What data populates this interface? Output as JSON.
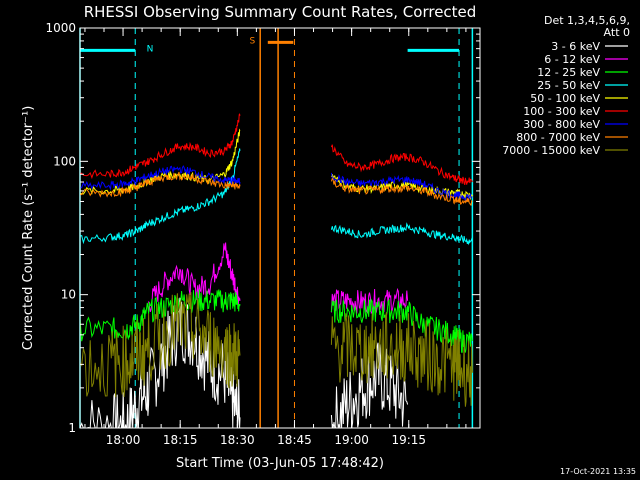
{
  "chart_data": {
    "type": "line",
    "title": "RHESSI Observing Summary Count Rates, Corrected",
    "xlabel": "Start Time (03-Jun-05 17:48:42)",
    "ylabel": "Corrected Count Rate (s⁻¹ detector⁻¹)",
    "yscale": "log",
    "ylim": [
      1,
      1000
    ],
    "xlim_minutes": [
      0,
      105
    ],
    "x_ticks": [
      {
        "label": "18:00",
        "min": 11.3
      },
      {
        "label": "18:15",
        "min": 26.3
      },
      {
        "label": "18:30",
        "min": 41.3
      },
      {
        "label": "18:45",
        "min": 56.3
      },
      {
        "label": "19:00",
        "min": 71.3
      },
      {
        "label": "19:15",
        "min": 86.3
      }
    ],
    "y_ticks": [
      {
        "label": "1",
        "value": 1
      },
      {
        "label": "10",
        "value": 10
      },
      {
        "label": "100",
        "value": 100
      },
      {
        "label": "1000",
        "value": 1000
      }
    ],
    "legend_header": [
      "Det 1,3,4,5,6,9,",
      "Att 0"
    ],
    "series": [
      {
        "name": "3 - 6 keV",
        "color": "#ffffff",
        "x": [
          0,
          8,
          12,
          15,
          18,
          22,
          26,
          30,
          34,
          38,
          40,
          42,
          46,
          50,
          55,
          62,
          66,
          70,
          74,
          78,
          82,
          86,
          90,
          94,
          98,
          100,
          103
        ],
        "y": [
          1,
          1,
          1,
          1.5,
          2,
          3.5,
          6,
          5,
          3,
          2.5,
          1.5,
          1.2,
          null,
          null,
          null,
          null,
          1,
          1.5,
          2,
          2.5,
          2,
          1.5,
          null,
          null,
          null,
          null,
          null
        ]
      },
      {
        "name": "6 - 12 keV",
        "color": "#ff00ff",
        "x": [
          0,
          8,
          12,
          15,
          18,
          22,
          26,
          30,
          34,
          38,
          40,
          42,
          46,
          50,
          55,
          62,
          66,
          70,
          74,
          78,
          82,
          86,
          90,
          94,
          98,
          100,
          103
        ],
        "y": [
          null,
          null,
          null,
          null,
          8.5,
          12,
          16,
          11,
          12,
          22,
          14,
          9,
          null,
          null,
          null,
          null,
          9,
          9,
          8.8,
          9,
          9,
          9,
          null,
          null,
          null,
          null,
          null
        ]
      },
      {
        "name": "12 - 25 keV",
        "color": "#00ff00",
        "x": [
          0,
          8,
          12,
          15,
          18,
          22,
          26,
          30,
          34,
          38,
          40,
          42,
          46,
          50,
          55,
          62,
          66,
          70,
          74,
          78,
          82,
          86,
          90,
          94,
          98,
          100,
          103
        ],
        "y": [
          5.5,
          5.5,
          5.5,
          6,
          7.5,
          8,
          9,
          9,
          9,
          9,
          9,
          8.5,
          null,
          null,
          null,
          null,
          7.5,
          7.5,
          7.5,
          7.5,
          7.5,
          7.5,
          6,
          5.5,
          5,
          4.5,
          4.5
        ]
      },
      {
        "name": "25 - 50 keV",
        "color": "#00ffff",
        "x": [
          0,
          8,
          12,
          15,
          18,
          22,
          26,
          30,
          34,
          38,
          40,
          42,
          46,
          50,
          55,
          62,
          66,
          70,
          74,
          78,
          82,
          86,
          90,
          94,
          98,
          100,
          103
        ],
        "y": [
          26,
          27,
          28,
          30,
          34,
          38,
          42,
          45,
          50,
          58,
          75,
          120,
          null,
          null,
          null,
          null,
          32,
          30,
          28,
          30,
          31,
          32,
          30,
          28,
          27,
          26,
          25
        ]
      },
      {
        "name": "50 - 100 keV",
        "color": "#ffff00",
        "x": [
          0,
          8,
          12,
          15,
          18,
          22,
          26,
          30,
          34,
          38,
          40,
          42,
          46,
          50,
          55,
          62,
          66,
          70,
          74,
          78,
          82,
          86,
          90,
          94,
          98,
          100,
          103
        ],
        "y": [
          60,
          60,
          62,
          65,
          72,
          78,
          80,
          76,
          72,
          80,
          100,
          170,
          null,
          null,
          null,
          null,
          80,
          65,
          62,
          63,
          66,
          66,
          62,
          60,
          58,
          57,
          56
        ]
      },
      {
        "name": "100 - 300 keV",
        "color": "#ff0000",
        "x": [
          0,
          8,
          12,
          15,
          18,
          22,
          26,
          30,
          34,
          38,
          40,
          42,
          46,
          50,
          55,
          62,
          66,
          70,
          74,
          78,
          82,
          86,
          90,
          94,
          98,
          100,
          103
        ],
        "y": [
          80,
          80,
          84,
          92,
          100,
          115,
          130,
          128,
          115,
          120,
          140,
          220,
          null,
          null,
          null,
          null,
          130,
          95,
          90,
          95,
          105,
          108,
          100,
          85,
          75,
          72,
          70
        ]
      },
      {
        "name": "300 - 800 keV",
        "color": "#0000ff",
        "x": [
          0,
          8,
          12,
          15,
          18,
          22,
          26,
          30,
          34,
          38,
          40,
          42,
          46,
          50,
          55,
          62,
          66,
          70,
          74,
          78,
          82,
          86,
          90,
          94,
          98,
          100,
          103
        ],
        "y": [
          65,
          66,
          68,
          72,
          78,
          84,
          88,
          83,
          76,
          72,
          72,
          70,
          null,
          null,
          null,
          null,
          78,
          70,
          68,
          70,
          72,
          73,
          68,
          60,
          56,
          55,
          54
        ]
      },
      {
        "name": "800 - 7000 keV",
        "color": "#ff8000",
        "x": [
          0,
          8,
          12,
          15,
          18,
          22,
          26,
          30,
          34,
          38,
          40,
          42,
          46,
          50,
          55,
          62,
          66,
          70,
          74,
          78,
          82,
          86,
          90,
          94,
          98,
          100,
          103
        ],
        "y": [
          58,
          58,
          60,
          64,
          70,
          76,
          78,
          75,
          70,
          66,
          66,
          65,
          null,
          null,
          null,
          null,
          70,
          62,
          60,
          61,
          63,
          63,
          60,
          55,
          52,
          50,
          50
        ]
      },
      {
        "name": "7000 - 15000 keV",
        "color": "#808000",
        "x": [
          0,
          8,
          12,
          15,
          18,
          22,
          26,
          30,
          34,
          38,
          40,
          42,
          46,
          50,
          55,
          62,
          66,
          70,
          74,
          78,
          82,
          86,
          90,
          94,
          98,
          100,
          103
        ],
        "y": [
          3,
          3,
          3.2,
          3.5,
          4,
          5,
          6,
          5.5,
          4.5,
          4,
          3.5,
          3.5,
          null,
          null,
          null,
          null,
          4,
          4,
          3.8,
          4,
          4,
          4,
          3.5,
          3.2,
          3,
          2.8,
          2.6
        ]
      }
    ],
    "markers": [
      {
        "label": "N",
        "color": "#00ffff",
        "solid_x": [
          0,
          103
        ],
        "dashed_x": [
          14.5,
          99.5
        ],
        "bar_value": 680,
        "bar_ranges": [
          [
            0,
            14.5
          ],
          [
            86,
            99.5
          ]
        ],
        "label_x": 17.5
      },
      {
        "label": "S",
        "color": "#ff8000",
        "solid_x": [
          47.3,
          52
        ],
        "dashed_x": [
          56.3
        ],
        "bar_value": 780,
        "bar_ranges": [
          [
            49.3,
            56
          ]
        ],
        "label_x": 44.5
      }
    ],
    "grid": false,
    "legend_position": "top-right"
  },
  "footer": {
    "timestamp": "17-Oct-2021 13:35"
  }
}
